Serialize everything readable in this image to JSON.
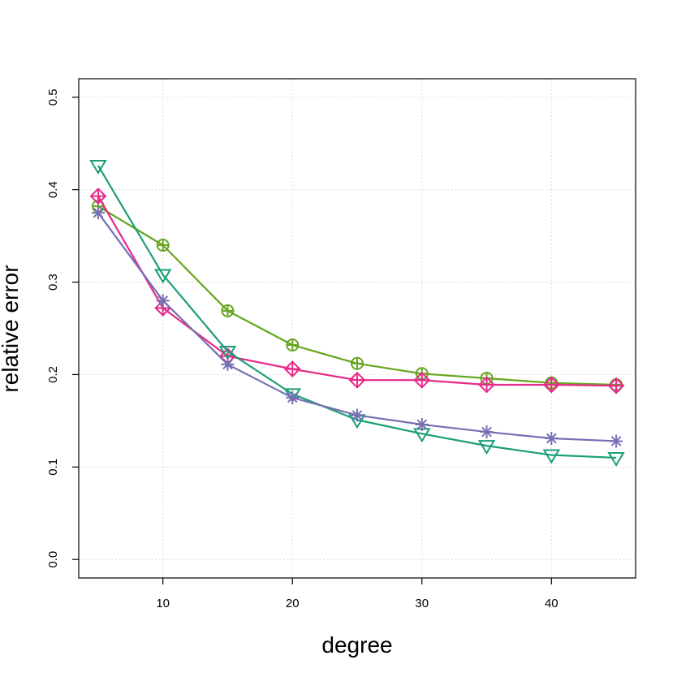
{
  "chart_data": {
    "type": "line",
    "title": "",
    "xlabel": "degree",
    "ylabel": "relative error",
    "x": [
      5,
      10,
      15,
      20,
      25,
      30,
      35,
      40,
      45
    ],
    "xlim": [
      3.5,
      46.5
    ],
    "ylim": [
      -0.02,
      0.52
    ],
    "x_ticks": [
      10,
      20,
      30,
      40
    ],
    "y_ticks": [
      0.0,
      0.1,
      0.2,
      0.3,
      0.4,
      0.5
    ],
    "x_tick_labels": [
      "10",
      "20",
      "30",
      "40"
    ],
    "y_tick_labels": [
      "0.0",
      "0.1",
      "0.2",
      "0.3",
      "0.4",
      "0.5"
    ],
    "grid": true,
    "series": [
      {
        "color": "#66a61e",
        "marker": "circle-plus",
        "values": [
          0.382,
          0.34,
          0.269,
          0.232,
          0.212,
          0.201,
          0.196,
          0.191,
          0.189
        ]
      },
      {
        "color": "#e7298a",
        "marker": "diamond-plus",
        "values": [
          0.393,
          0.272,
          0.22,
          0.206,
          0.194,
          0.194,
          0.189,
          0.189,
          0.188
        ]
      },
      {
        "color": "#1b9e77",
        "marker": "triangle-down",
        "values": [
          0.426,
          0.308,
          0.225,
          0.179,
          0.151,
          0.136,
          0.123,
          0.113,
          0.11
        ]
      },
      {
        "color": "#7570b3",
        "marker": "asterisk",
        "values": [
          0.375,
          0.28,
          0.211,
          0.175,
          0.156,
          0.146,
          0.138,
          0.131,
          0.128
        ]
      }
    ]
  }
}
